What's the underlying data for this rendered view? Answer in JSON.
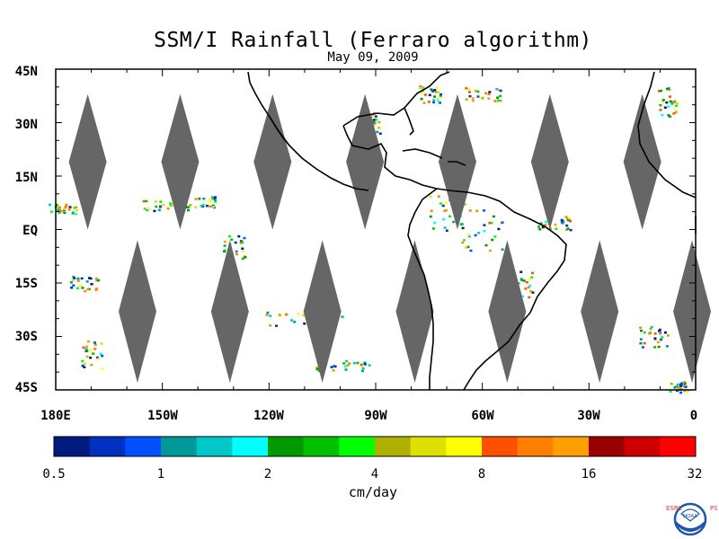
{
  "title": "SSM/I Rainfall (Ferraro algorithm)",
  "date": "May 09, 2009",
  "map": {
    "lon_range": [
      -180,
      0
    ],
    "lat_range": [
      -45,
      45
    ],
    "lat_labels": [
      "45N",
      "30N",
      "15N",
      "EQ",
      "15S",
      "30S",
      "45S"
    ],
    "lon_labels": [
      "180E",
      "150W",
      "120W",
      "90W",
      "60W",
      "30W",
      "0"
    ],
    "colors": {
      "land_outline": "#000000",
      "orbit_gap": "#666666",
      "background": "#ffffff"
    }
  },
  "colorbar": {
    "units": "cm/day",
    "tick_labels": [
      "0.5",
      "1",
      "2",
      "4",
      "8",
      "16",
      "32"
    ],
    "colors": [
      "#001a80",
      "#0030c0",
      "#0050ff",
      "#00999a",
      "#00c8c8",
      "#00ffff",
      "#009900",
      "#00c000",
      "#00ff00",
      "#b0b000",
      "#e0e000",
      "#ffff00",
      "#ff5000",
      "#ff8000",
      "#ffa000",
      "#990000",
      "#cc0000",
      "#ff0000"
    ]
  },
  "logo": {
    "left_text": "ESRL",
    "right_text": "PSD",
    "center_text": "NOAA",
    "colors": {
      "ring": "#1f56a8",
      "text": "#e03030"
    }
  }
}
